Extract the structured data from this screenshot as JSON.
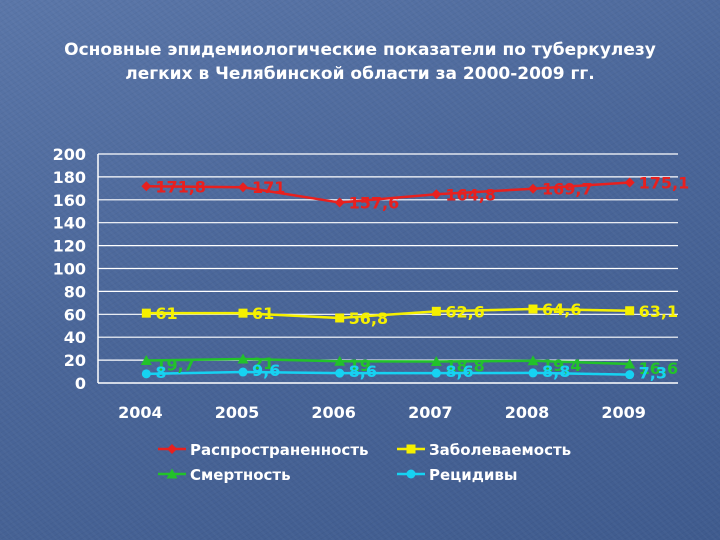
{
  "chart_data": {
    "type": "line",
    "title_line1": "Основные эпидемиологические показатели по туберкулезу",
    "title_line2": "легких в Челябинской области за 2000-2009 гг.",
    "categories": [
      "2004",
      "2005",
      "2006",
      "2007",
      "2008",
      "2009"
    ],
    "ylim": [
      0,
      200
    ],
    "yticks": [
      "200",
      "180",
      "160",
      "140",
      "120",
      "100",
      "80",
      "60",
      "40",
      "20",
      "0"
    ],
    "grid": true,
    "legend_position": "bottom",
    "series": [
      {
        "name": "Распространенность",
        "color": "#e8201e",
        "marker": "diamond",
        "values": [
          171.8,
          171,
          157.6,
          164.8,
          169.7,
          175.1
        ],
        "labels": [
          "171,8",
          "171",
          "157,6",
          "164,8",
          "169,7",
          "175,1"
        ]
      },
      {
        "name": "Заболеваемость",
        "color": "#f5f000",
        "marker": "square",
        "values": [
          61,
          61,
          56.8,
          62.6,
          64.6,
          63.1
        ],
        "labels": [
          "61",
          "61",
          "56,8",
          "62,6",
          "64,6",
          "63,1"
        ]
      },
      {
        "name": "Смертность",
        "color": "#22c22a",
        "marker": "triangle",
        "values": [
          19.7,
          21,
          19,
          18.8,
          19.4,
          16.6
        ],
        "labels": [
          "19,7",
          "21",
          "19",
          "18,8",
          "19,4",
          "16,6"
        ]
      },
      {
        "name": "Рецидивы",
        "color": "#16d2f2",
        "marker": "circle",
        "values": [
          8,
          9.6,
          8.6,
          8.6,
          8.8,
          7.3
        ],
        "labels": [
          "8",
          "9,6",
          "8,6",
          "8,6",
          "8,8",
          "7,3"
        ]
      }
    ]
  }
}
